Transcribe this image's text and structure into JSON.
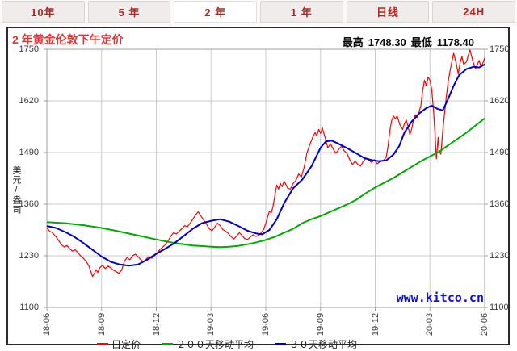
{
  "tabs": [
    {
      "label": "10年",
      "selected": false
    },
    {
      "label": "5 年",
      "selected": false
    },
    {
      "label": "2 年",
      "selected": true
    },
    {
      "label": "1 年",
      "selected": false
    },
    {
      "label": "日线",
      "selected": false
    },
    {
      "label": "24H",
      "selected": false
    }
  ],
  "panel": {
    "title": "2 年黄金伦敦下午定价",
    "stats": {
      "high_label": "最高",
      "high_value": "1748.30",
      "low_label": "最低",
      "low_value": "1178.40"
    },
    "watermark": "www.kitco.cn"
  },
  "chart_data": {
    "type": "line",
    "title": "2 年黄金伦敦下午定价",
    "ylabel": "美元/盎司",
    "xlabel": "",
    "ylim": [
      1100,
      1750
    ],
    "yticks": [
      1100,
      1230,
      1360,
      1490,
      1620,
      1750
    ],
    "xlim": [
      0,
      24
    ],
    "xticks": [
      {
        "x": 0,
        "label": "18-06"
      },
      {
        "x": 3,
        "label": "18-09"
      },
      {
        "x": 6,
        "label": "18-12"
      },
      {
        "x": 9,
        "label": "19-03"
      },
      {
        "x": 12,
        "label": "19-06"
      },
      {
        "x": 15,
        "label": "19-09"
      },
      {
        "x": 18,
        "label": "19-12"
      },
      {
        "x": 21,
        "label": "20-03"
      },
      {
        "x": 24,
        "label": "20-06"
      }
    ],
    "grid": true,
    "legend_position": "bottom",
    "high": 1748.3,
    "low": 1178.4,
    "colors": {
      "grid": "#cbcbcb",
      "plot_border": "#a0a0a0"
    },
    "series": [
      {
        "name": "日定价",
        "color": "#ff0000",
        "width": 1.2,
        "points": [
          [
            0,
            1300
          ],
          [
            0.15,
            1292
          ],
          [
            0.3,
            1288
          ],
          [
            0.5,
            1278
          ],
          [
            0.65,
            1268
          ],
          [
            0.8,
            1258
          ],
          [
            0.95,
            1252
          ],
          [
            1.1,
            1256
          ],
          [
            1.25,
            1248
          ],
          [
            1.4,
            1242
          ],
          [
            1.55,
            1245
          ],
          [
            1.7,
            1238
          ],
          [
            1.85,
            1230
          ],
          [
            2,
            1224
          ],
          [
            2.15,
            1216
          ],
          [
            2.3,
            1205
          ],
          [
            2.4,
            1192
          ],
          [
            2.5,
            1178
          ],
          [
            2.6,
            1185
          ],
          [
            2.7,
            1195
          ],
          [
            2.8,
            1188
          ],
          [
            2.9,
            1200
          ],
          [
            3.05,
            1206
          ],
          [
            3.2,
            1198
          ],
          [
            3.35,
            1204
          ],
          [
            3.5,
            1200
          ],
          [
            3.65,
            1194
          ],
          [
            3.8,
            1190
          ],
          [
            3.95,
            1186
          ],
          [
            4.1,
            1194
          ],
          [
            4.25,
            1216
          ],
          [
            4.4,
            1226
          ],
          [
            4.55,
            1220
          ],
          [
            4.7,
            1230
          ],
          [
            4.85,
            1234
          ],
          [
            5,
            1228
          ],
          [
            5.15,
            1220
          ],
          [
            5.3,
            1215
          ],
          [
            5.45,
            1222
          ],
          [
            5.6,
            1228
          ],
          [
            5.75,
            1224
          ],
          [
            5.9,
            1230
          ],
          [
            6.05,
            1238
          ],
          [
            6.2,
            1246
          ],
          [
            6.35,
            1252
          ],
          [
            6.5,
            1258
          ],
          [
            6.65,
            1268
          ],
          [
            6.8,
            1280
          ],
          [
            6.95,
            1288
          ],
          [
            7.1,
            1285
          ],
          [
            7.25,
            1292
          ],
          [
            7.4,
            1298
          ],
          [
            7.55,
            1306
          ],
          [
            7.7,
            1303
          ],
          [
            7.85,
            1312
          ],
          [
            8,
            1322
          ],
          [
            8.15,
            1333
          ],
          [
            8.3,
            1341
          ],
          [
            8.45,
            1330
          ],
          [
            8.6,
            1320
          ],
          [
            8.75,
            1310
          ],
          [
            8.9,
            1298
          ],
          [
            9.05,
            1293
          ],
          [
            9.2,
            1302
          ],
          [
            9.35,
            1312
          ],
          [
            9.5,
            1306
          ],
          [
            9.65,
            1296
          ],
          [
            9.8,
            1292
          ],
          [
            9.95,
            1286
          ],
          [
            10.1,
            1278
          ],
          [
            10.25,
            1272
          ],
          [
            10.4,
            1280
          ],
          [
            10.55,
            1288
          ],
          [
            10.7,
            1281
          ],
          [
            10.85,
            1273
          ],
          [
            11,
            1271
          ],
          [
            11.15,
            1277
          ],
          [
            11.3,
            1283
          ],
          [
            11.45,
            1279
          ],
          [
            11.6,
            1281
          ],
          [
            11.75,
            1288
          ],
          [
            11.9,
            1298
          ],
          [
            12,
            1312
          ],
          [
            12.1,
            1328
          ],
          [
            12.2,
            1342
          ],
          [
            12.3,
            1338
          ],
          [
            12.4,
            1355
          ],
          [
            12.5,
            1382
          ],
          [
            12.6,
            1408
          ],
          [
            12.7,
            1398
          ],
          [
            12.8,
            1412
          ],
          [
            12.9,
            1404
          ],
          [
            13,
            1418
          ],
          [
            13.1,
            1410
          ],
          [
            13.2,
            1400
          ],
          [
            13.35,
            1398
          ],
          [
            13.5,
            1412
          ],
          [
            13.65,
            1420
          ],
          [
            13.8,
            1436
          ],
          [
            13.95,
            1428
          ],
          [
            14.1,
            1452
          ],
          [
            14.25,
            1488
          ],
          [
            14.4,
            1508
          ],
          [
            14.55,
            1526
          ],
          [
            14.7,
            1540
          ],
          [
            14.8,
            1532
          ],
          [
            14.9,
            1548
          ],
          [
            15,
            1538
          ],
          [
            15.1,
            1552
          ],
          [
            15.25,
            1528
          ],
          [
            15.4,
            1502
          ],
          [
            15.55,
            1512
          ],
          [
            15.7,
            1498
          ],
          [
            15.85,
            1488
          ],
          [
            16,
            1498
          ],
          [
            16.15,
            1506
          ],
          [
            16.3,
            1494
          ],
          [
            16.45,
            1488
          ],
          [
            16.6,
            1472
          ],
          [
            16.75,
            1460
          ],
          [
            16.9,
            1468
          ],
          [
            17.05,
            1460
          ],
          [
            17.2,
            1456
          ],
          [
            17.35,
            1468
          ],
          [
            17.5,
            1476
          ],
          [
            17.65,
            1470
          ],
          [
            17.8,
            1465
          ],
          [
            17.95,
            1472
          ],
          [
            18.1,
            1462
          ],
          [
            18.25,
            1466
          ],
          [
            18.45,
            1470
          ],
          [
            18.6,
            1478
          ],
          [
            18.7,
            1505
          ],
          [
            18.8,
            1545
          ],
          [
            18.9,
            1570
          ],
          [
            19,
            1582
          ],
          [
            19.1,
            1575
          ],
          [
            19.2,
            1582
          ],
          [
            19.35,
            1560
          ],
          [
            19.5,
            1548
          ],
          [
            19.6,
            1562
          ],
          [
            19.7,
            1572
          ],
          [
            19.8,
            1555
          ],
          [
            19.9,
            1535
          ],
          [
            20,
            1550
          ],
          [
            20.1,
            1572
          ],
          [
            20.2,
            1585
          ],
          [
            20.3,
            1578
          ],
          [
            20.4,
            1592
          ],
          [
            20.5,
            1608
          ],
          [
            20.6,
            1645
          ],
          [
            20.7,
            1672
          ],
          [
            20.8,
            1658
          ],
          [
            20.9,
            1680
          ],
          [
            21,
            1672
          ],
          [
            21.1,
            1648
          ],
          [
            21.2,
            1592
          ],
          [
            21.3,
            1520
          ],
          [
            21.35,
            1474
          ],
          [
            21.45,
            1528
          ],
          [
            21.5,
            1492
          ],
          [
            21.6,
            1486
          ],
          [
            21.7,
            1545
          ],
          [
            21.8,
            1588
          ],
          [
            21.9,
            1632
          ],
          [
            22,
            1668
          ],
          [
            22.1,
            1695
          ],
          [
            22.2,
            1718
          ],
          [
            22.3,
            1740
          ],
          [
            22.45,
            1712
          ],
          [
            22.55,
            1688
          ],
          [
            22.65,
            1715
          ],
          [
            22.75,
            1732
          ],
          [
            22.85,
            1712
          ],
          [
            23,
            1718
          ],
          [
            23.1,
            1735
          ],
          [
            23.2,
            1748
          ],
          [
            23.35,
            1720
          ],
          [
            23.5,
            1700
          ],
          [
            23.6,
            1712
          ],
          [
            23.7,
            1722
          ],
          [
            23.8,
            1705
          ],
          [
            23.9,
            1715
          ],
          [
            24,
            1728
          ]
        ]
      },
      {
        "name": "２００天移动平均",
        "color": "#00aa00",
        "width": 2,
        "points": [
          [
            0,
            1315
          ],
          [
            1,
            1312
          ],
          [
            2,
            1307
          ],
          [
            3,
            1300
          ],
          [
            4,
            1291
          ],
          [
            5,
            1281
          ],
          [
            6,
            1271
          ],
          [
            7,
            1262
          ],
          [
            8,
            1256
          ],
          [
            9,
            1253
          ],
          [
            9.5,
            1252
          ],
          [
            10,
            1253
          ],
          [
            10.5,
            1255
          ],
          [
            11,
            1259
          ],
          [
            11.5,
            1264
          ],
          [
            12,
            1270
          ],
          [
            12.5,
            1278
          ],
          [
            13,
            1288
          ],
          [
            13.5,
            1298
          ],
          [
            14,
            1312
          ],
          [
            14.5,
            1322
          ],
          [
            15,
            1330
          ],
          [
            15.5,
            1340
          ],
          [
            16,
            1350
          ],
          [
            16.5,
            1360
          ],
          [
            17,
            1372
          ],
          [
            17.5,
            1388
          ],
          [
            18,
            1402
          ],
          [
            18.5,
            1414
          ],
          [
            19,
            1426
          ],
          [
            19.5,
            1440
          ],
          [
            20,
            1454
          ],
          [
            20.5,
            1468
          ],
          [
            21,
            1480
          ],
          [
            21.5,
            1492
          ],
          [
            22,
            1508
          ],
          [
            22.5,
            1524
          ],
          [
            23,
            1540
          ],
          [
            23.5,
            1558
          ],
          [
            24,
            1576
          ]
        ]
      },
      {
        "name": "３０天移动平均",
        "color": "#0000cc",
        "width": 2,
        "points": [
          [
            0,
            1305
          ],
          [
            0.5,
            1300
          ],
          [
            1,
            1290
          ],
          [
            1.5,
            1278
          ],
          [
            2,
            1262
          ],
          [
            2.5,
            1245
          ],
          [
            3,
            1228
          ],
          [
            3.5,
            1215
          ],
          [
            4,
            1208
          ],
          [
            4.5,
            1205
          ],
          [
            5,
            1208
          ],
          [
            5.5,
            1220
          ],
          [
            6,
            1235
          ],
          [
            6.5,
            1248
          ],
          [
            7,
            1262
          ],
          [
            7.5,
            1280
          ],
          [
            8,
            1298
          ],
          [
            8.5,
            1312
          ],
          [
            9,
            1318
          ],
          [
            9.5,
            1322
          ],
          [
            10,
            1316
          ],
          [
            10.5,
            1305
          ],
          [
            11,
            1293
          ],
          [
            11.5,
            1286
          ],
          [
            11.8,
            1284
          ],
          [
            12.2,
            1295
          ],
          [
            12.6,
            1322
          ],
          [
            13,
            1362
          ],
          [
            13.5,
            1400
          ],
          [
            14,
            1422
          ],
          [
            14.5,
            1455
          ],
          [
            15,
            1502
          ],
          [
            15.3,
            1518
          ],
          [
            15.6,
            1520
          ],
          [
            16,
            1512
          ],
          [
            16.5,
            1500
          ],
          [
            17,
            1487
          ],
          [
            17.4,
            1476
          ],
          [
            17.8,
            1471
          ],
          [
            18.2,
            1468
          ],
          [
            18.6,
            1470
          ],
          [
            19,
            1485
          ],
          [
            19.3,
            1505
          ],
          [
            19.6,
            1540
          ],
          [
            20,
            1568
          ],
          [
            20.4,
            1588
          ],
          [
            20.8,
            1602
          ],
          [
            21.1,
            1608
          ],
          [
            21.4,
            1600
          ],
          [
            21.7,
            1596
          ],
          [
            22,
            1625
          ],
          [
            22.3,
            1658
          ],
          [
            22.6,
            1685
          ],
          [
            23,
            1700
          ],
          [
            23.4,
            1706
          ],
          [
            23.7,
            1704
          ],
          [
            24,
            1712
          ]
        ]
      }
    ]
  }
}
